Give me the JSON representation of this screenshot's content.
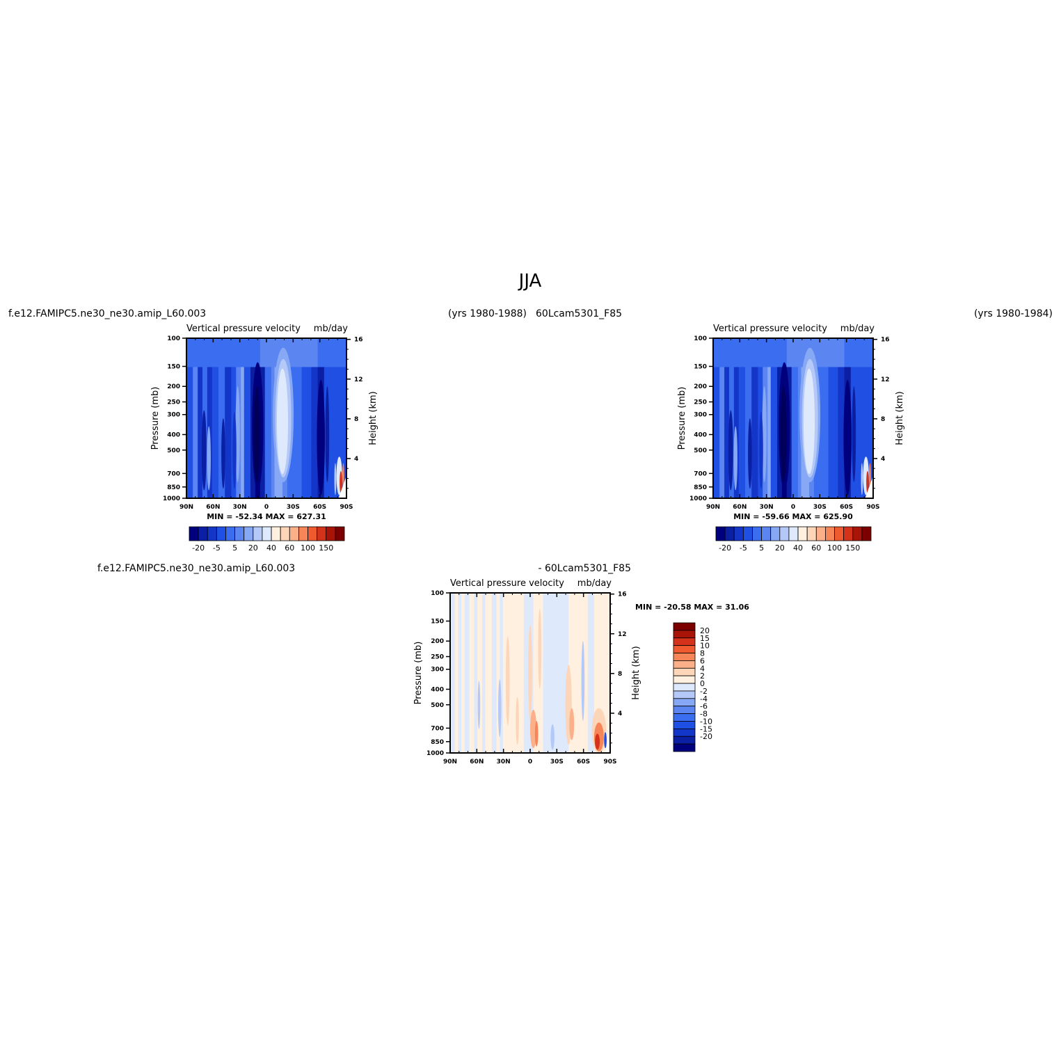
{
  "page_title": "JJA",
  "colors": {
    "seq": [
      "#00007f",
      "#0a1fa3",
      "#1436c8",
      "#1f4fe3",
      "#3a6df0",
      "#5b86f1",
      "#87a8f4",
      "#b5c9f8",
      "#dfe9fc",
      "#fff0e0",
      "#fdd5b8",
      "#fbb08a",
      "#f68557",
      "#ef5a2e",
      "#d4321a",
      "#a81508",
      "#7d0000"
    ],
    "diff": [
      "#00007f",
      "#0a1fa3",
      "#1436c8",
      "#1f4fe3",
      "#3a6df0",
      "#5b86f1",
      "#87a8f4",
      "#b5c9f8",
      "#dfe9fc",
      "#fff0e0",
      "#fdd5b8",
      "#fbb08a",
      "#f68557",
      "#ef5a2e",
      "#d4321a",
      "#a81508",
      "#7d0000"
    ]
  },
  "panels": [
    {
      "header_left": "f.e12.FAMIPC5.ne30_ne30.amip_L60.003",
      "header_right": "(yrs 1980-1988)",
      "subtitle_left": "Vertical  pressure  velocity",
      "subtitle_right": "mb/day",
      "ylabel": "Pressure  (mb)",
      "ylabel_right": "Height  (km)",
      "minmax": "MIN  =  -52.34    MAX  =  627.31",
      "colorbar_labels": [
        "-20",
        "-5",
        "5",
        "20",
        "40",
        "60",
        "100",
        "150"
      ]
    },
    {
      "header_left": "60Lcam5301_F85",
      "header_right": "(yrs 1980-1984)",
      "subtitle_left": "Vertical  pressure  velocity",
      "subtitle_right": "mb/day",
      "ylabel": "Pressure  (mb)",
      "ylabel_right": "Height  (km)",
      "minmax": "MIN  =  -59.66    MAX  =  625.90",
      "colorbar_labels": [
        "-20",
        "-5",
        "5",
        "20",
        "40",
        "60",
        "100",
        "150"
      ]
    },
    {
      "header_left": "f.e12.FAMIPC5.ne30_ne30.amip_L60.003",
      "header_right": "-  60Lcam5301_F85",
      "subtitle_left": "Vertical  pressure  velocity",
      "subtitle_right": "mb/day",
      "ylabel": "Pressure  (mb)",
      "ylabel_right": "Height  (km)",
      "minmax": "MIN  =  -20.58    MAX  =   31.06",
      "colorbar_labels": [
        "20",
        "15",
        "10",
        "8",
        "6",
        "4",
        "2",
        "0",
        "-2",
        "-4",
        "-6",
        "-8",
        "-10",
        "-15",
        "-20"
      ]
    }
  ],
  "chart_data": [
    {
      "type": "heatmap",
      "title": "Vertical pressure velocity",
      "units": "mb/day",
      "x_ticks": [
        "90N",
        "60N",
        "30N",
        "0",
        "30S",
        "60S",
        "90S"
      ],
      "y_ticks": [
        100,
        150,
        200,
        250,
        300,
        400,
        500,
        700,
        850,
        1000
      ],
      "y2_ticks": [
        16,
        12,
        8,
        4
      ],
      "xlabel": "",
      "ylabel": "Pressure (mb)",
      "ylabel_right": "Height (km)",
      "ylim": [
        1000,
        100
      ],
      "y_scale": "log",
      "min": -52.34,
      "max": 627.31,
      "contour_levels": [
        -20,
        -5,
        5,
        20,
        40,
        60,
        100,
        150
      ]
    },
    {
      "type": "heatmap",
      "title": "Vertical pressure velocity",
      "units": "mb/day",
      "x_ticks": [
        "90N",
        "60N",
        "30N",
        "0",
        "30S",
        "60S",
        "90S"
      ],
      "y_ticks": [
        100,
        150,
        200,
        250,
        300,
        400,
        500,
        700,
        850,
        1000
      ],
      "y2_ticks": [
        16,
        12,
        8,
        4
      ],
      "xlabel": "",
      "ylabel": "Pressure (mb)",
      "ylabel_right": "Height (km)",
      "ylim": [
        1000,
        100
      ],
      "y_scale": "log",
      "min": -59.66,
      "max": 625.9,
      "contour_levels": [
        -20,
        -5,
        5,
        20,
        40,
        60,
        100,
        150
      ]
    },
    {
      "type": "heatmap",
      "title": "Vertical pressure velocity",
      "units": "mb/day",
      "x_ticks": [
        "90N",
        "60N",
        "30N",
        "0",
        "30S",
        "60S",
        "90S"
      ],
      "y_ticks": [
        100,
        150,
        200,
        250,
        300,
        400,
        500,
        700,
        850,
        1000
      ],
      "y2_ticks": [
        16,
        12,
        8,
        4
      ],
      "xlabel": "",
      "ylabel": "Pressure (mb)",
      "ylabel_right": "Height (km)",
      "ylim": [
        1000,
        100
      ],
      "y_scale": "log",
      "min": -20.58,
      "max": 31.06,
      "contour_levels": [
        -20,
        -15,
        -10,
        -8,
        -6,
        -4,
        -2,
        0,
        2,
        4,
        6,
        8,
        10,
        15,
        20
      ]
    }
  ]
}
